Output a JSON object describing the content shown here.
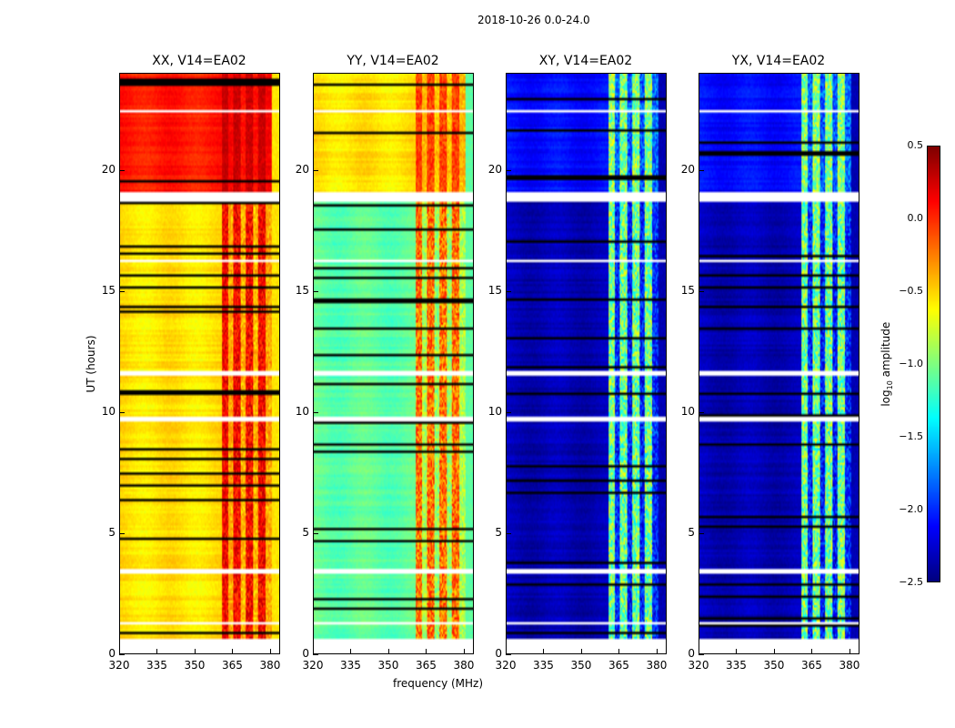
{
  "chart_data": {
    "type": "heatmap",
    "title": "2018-10-26 0.0-24.0",
    "xlabel": "frequency (MHz)",
    "ylabel": "UT (hours)",
    "xlim": [
      320,
      384
    ],
    "ylim": [
      0,
      24
    ],
    "xticks": [
      "320",
      "335",
      "350",
      "365",
      "380"
    ],
    "yticks": [
      "0",
      "5",
      "10",
      "15",
      "20"
    ],
    "colorbar": {
      "label": "log10 amplitude",
      "label_main": "log",
      "label_sub": "10",
      "label_rest": " amplitude",
      "range": [
        -2.5,
        0.5
      ],
      "ticks": [
        "0.5",
        "0.0",
        "−0.5",
        "−1.0",
        "−1.5",
        "−2.0",
        "−2.5"
      ],
      "colormap": "jet"
    },
    "rfi_channels_mhz": [
      362,
      367,
      372,
      377
    ],
    "flagged_hours": [
      [
        0,
        0.6
      ],
      [
        1.2,
        1.3
      ],
      [
        3.3,
        3.5
      ],
      [
        9.6,
        9.75
      ],
      [
        11.5,
        11.7
      ],
      [
        16.2,
        16.3
      ],
      [
        18.75,
        19.05
      ],
      [
        22.4,
        22.5
      ]
    ],
    "panels": [
      {
        "title": "XX, V14=EA02",
        "base_low": -0.55,
        "base_high": 0.05,
        "rfi_level": 0.35
      },
      {
        "title": "YY, V14=EA02",
        "base_low": -1.1,
        "base_high": -0.55,
        "rfi_level": 0.1
      },
      {
        "title": "XY, V14=EA02",
        "base_low": -2.35,
        "base_high": -2.1,
        "rfi_level": -0.6
      },
      {
        "title": "YX, V14=EA02",
        "base_low": -2.35,
        "base_high": -2.1,
        "rfi_level": -0.6
      }
    ]
  }
}
